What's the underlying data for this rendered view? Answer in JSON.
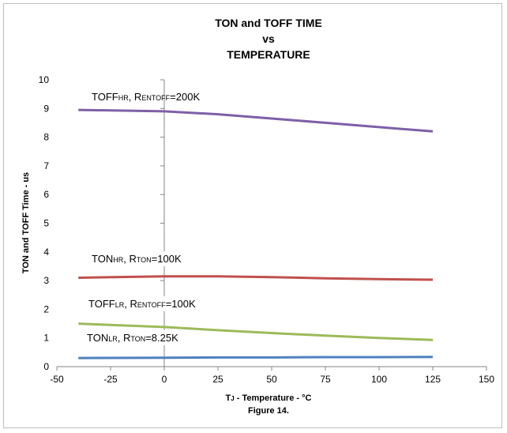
{
  "chart_data": {
    "type": "line",
    "title": [
      "TON and TOFF TIME",
      "vs",
      "TEMPERATURE"
    ],
    "xlabel": "TJ - Temperature - °C",
    "xlabel_main": "T",
    "xlabel_sub": "J",
    "xlabel_rest": " - Temperature - °C",
    "ylabel": "TON and TOFF Time - us",
    "caption": "Figure 14.",
    "xlim": [
      -50,
      150
    ],
    "ylim": [
      0,
      10
    ],
    "xticks": [
      -50,
      -25,
      0,
      25,
      50,
      75,
      100,
      125,
      150
    ],
    "yticks": [
      0,
      1,
      2,
      3,
      4,
      5,
      6,
      7,
      8,
      9,
      10
    ],
    "grid": false,
    "series": [
      {
        "name": "TOFFHR, RENTOFF=200K",
        "label_parts": [
          [
            "TOFF",
            ""
          ],
          [
            "HR",
            "sub"
          ],
          [
            ", R",
            ""
          ],
          [
            "ENTOFF",
            "sub"
          ],
          [
            "=200K",
            ""
          ]
        ],
        "color": "#7f5fa8",
        "x": [
          -40,
          0,
          25,
          50,
          75,
          100,
          125
        ],
        "y": [
          8.95,
          8.9,
          8.8,
          8.65,
          8.5,
          8.35,
          8.2
        ]
      },
      {
        "name": "TONHR, RTON=100K",
        "label_parts": [
          [
            "TON",
            ""
          ],
          [
            "HR",
            "sub"
          ],
          [
            ", R",
            ""
          ],
          [
            "TON",
            "sub"
          ],
          [
            "=100K",
            ""
          ]
        ],
        "color": "#c0504d",
        "x": [
          -40,
          0,
          25,
          50,
          75,
          100,
          125
        ],
        "y": [
          3.1,
          3.15,
          3.15,
          3.12,
          3.08,
          3.05,
          3.03
        ]
      },
      {
        "name": "TOFFLR, RENTOFF=100K",
        "label_parts": [
          [
            "TOFF",
            ""
          ],
          [
            "LR",
            "sub"
          ],
          [
            ", R",
            ""
          ],
          [
            "ENTOFF",
            "sub"
          ],
          [
            "=100K",
            ""
          ]
        ],
        "color": "#9bbb59",
        "x": [
          -40,
          0,
          25,
          50,
          75,
          100,
          125
        ],
        "y": [
          1.5,
          1.38,
          1.27,
          1.17,
          1.08,
          1.0,
          0.93
        ]
      },
      {
        "name": "TONLR, RTON=8.25K",
        "label_parts": [
          [
            "TON",
            ""
          ],
          [
            "LR",
            "sub"
          ],
          [
            ", R",
            ""
          ],
          [
            "TON",
            "sub"
          ],
          [
            "=8.25K",
            ""
          ]
        ],
        "color": "#4f81bd",
        "x": [
          -40,
          0,
          25,
          50,
          75,
          100,
          125
        ],
        "y": [
          0.3,
          0.31,
          0.32,
          0.32,
          0.33,
          0.33,
          0.34
        ]
      }
    ]
  }
}
